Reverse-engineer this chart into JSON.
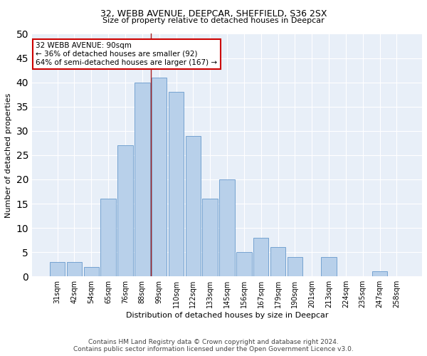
{
  "title": "32, WEBB AVENUE, DEEPCAR, SHEFFIELD, S36 2SX",
  "subtitle": "Size of property relative to detached houses in Deepcar",
  "xlabel": "Distribution of detached houses by size in Deepcar",
  "ylabel": "Number of detached properties",
  "bar_labels": [
    "31sqm",
    "42sqm",
    "54sqm",
    "65sqm",
    "76sqm",
    "88sqm",
    "99sqm",
    "110sqm",
    "122sqm",
    "133sqm",
    "145sqm",
    "156sqm",
    "167sqm",
    "179sqm",
    "190sqm",
    "201sqm",
    "213sqm",
    "224sqm",
    "235sqm",
    "247sqm",
    "258sqm"
  ],
  "bar_values": [
    3,
    3,
    2,
    16,
    27,
    40,
    41,
    38,
    29,
    16,
    20,
    5,
    8,
    6,
    4,
    0,
    4,
    0,
    0,
    1,
    0
  ],
  "bar_color": "#b8d0ea",
  "bar_edge_color": "#6699cc",
  "property_line_x": 6.0,
  "property_line_color": "#aa2222",
  "ylim": [
    0,
    50
  ],
  "yticks": [
    0,
    5,
    10,
    15,
    20,
    25,
    30,
    35,
    40,
    45,
    50
  ],
  "annotation_title": "32 WEBB AVENUE: 90sqm",
  "annotation_line1": "← 36% of detached houses are smaller (92)",
  "annotation_line2": "64% of semi-detached houses are larger (167) →",
  "annotation_box_color": "#ffffff",
  "annotation_box_edge": "#cc0000",
  "footer1": "Contains HM Land Registry data © Crown copyright and database right 2024.",
  "footer2": "Contains public sector information licensed under the Open Government Licence v3.0.",
  "bg_color": "#e8eff8",
  "grid_color": "#ffffff",
  "fig_bg_color": "#ffffff",
  "title_fontsize": 9,
  "subtitle_fontsize": 8,
  "ylabel_fontsize": 8,
  "xlabel_fontsize": 8,
  "tick_fontsize": 7,
  "annot_fontsize": 7.5,
  "footer_fontsize": 6.5
}
